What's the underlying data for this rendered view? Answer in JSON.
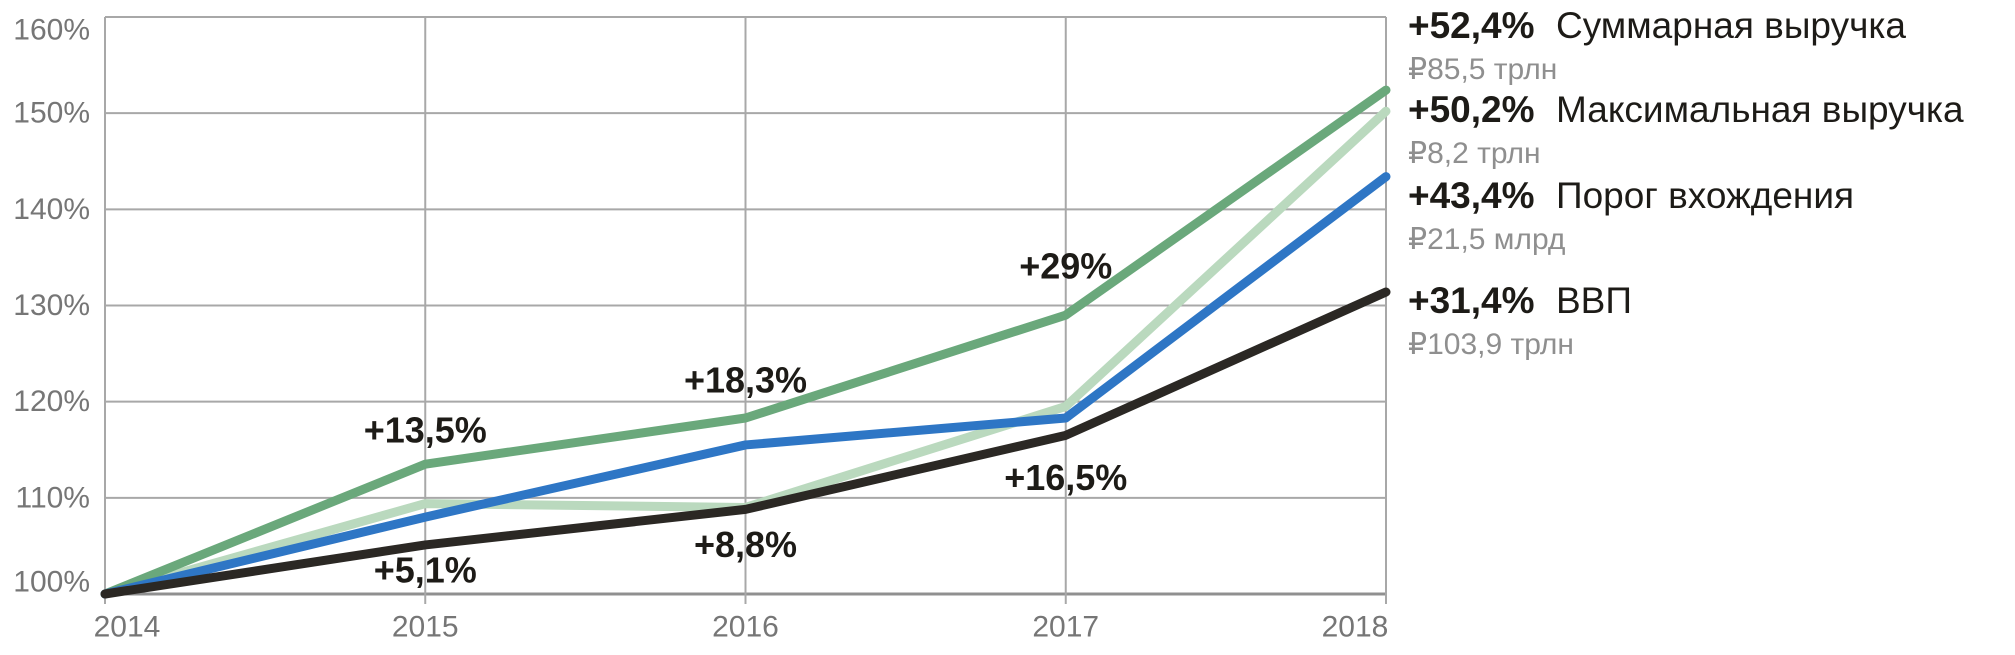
{
  "chart_data": {
    "type": "line",
    "title": "",
    "xlabel": "",
    "ylabel": "",
    "x": [
      2014,
      2015,
      2016,
      2017,
      2018
    ],
    "x_labels": [
      "2014",
      "2015",
      "2016",
      "2017",
      "2018"
    ],
    "ylim": [
      100,
      160
    ],
    "ytick_step": 10,
    "ytick_labels": [
      "100%",
      "110%",
      "120%",
      "130%",
      "140%",
      "150%",
      "160%"
    ],
    "grid": true,
    "legend_position": "right",
    "series": [
      {
        "id": "sum",
        "name": "Суммарная выручка",
        "color": "#6aa87b",
        "values": [
          100,
          113.5,
          118.3,
          129,
          152.4
        ]
      },
      {
        "id": "max",
        "name": "Максимальная выручка",
        "color": "#bad9be",
        "values": [
          100,
          109.4,
          109.0,
          119.5,
          150.2
        ]
      },
      {
        "id": "threshold",
        "name": "Порог вхождения",
        "color": "#2e76c5",
        "values": [
          100,
          108.0,
          115.5,
          118.3,
          143.4
        ]
      },
      {
        "id": "gdp",
        "name": "ВВП",
        "color": "#2b2824",
        "values": [
          100,
          105.1,
          108.8,
          116.5,
          131.4
        ]
      }
    ],
    "draw_order": [
      "max",
      "sum",
      "threshold",
      "gdp"
    ],
    "annotations": [
      {
        "text": "+5,1%",
        "series": "gdp",
        "year": 2015,
        "dy": 25
      },
      {
        "text": "+8,8%",
        "series": "gdp",
        "year": 2016,
        "dy": 35
      },
      {
        "text": "+16,5%",
        "series": "gdp",
        "year": 2017,
        "dy": 42
      },
      {
        "text": "+13,5%",
        "series": "sum",
        "year": 2015,
        "dy": -34
      },
      {
        "text": "+18,3%",
        "series": "sum",
        "year": 2016,
        "dy": -38
      },
      {
        "text": "+29%",
        "series": "sum",
        "year": 2017,
        "dy": -49
      }
    ],
    "colors": {
      "grid": "#a8a8a8",
      "axis": "#909090",
      "tick_label": "#767676",
      "annotation": "#1d1b17"
    }
  },
  "legend": {
    "items": [
      {
        "pct": "+52,4%",
        "value": "₽85,5 трлн",
        "name": "Суммарная выручка"
      },
      {
        "pct": "+50,2%",
        "value": "₽8,2 трлн",
        "name": "Максимальная выручка"
      },
      {
        "pct": "+43,4%",
        "value": "₽21,5 млрд",
        "name": "Порог вхождения"
      },
      {
        "pct": "+31,4%",
        "value": "₽103,9 трлн",
        "name": "ВВП"
      }
    ]
  }
}
